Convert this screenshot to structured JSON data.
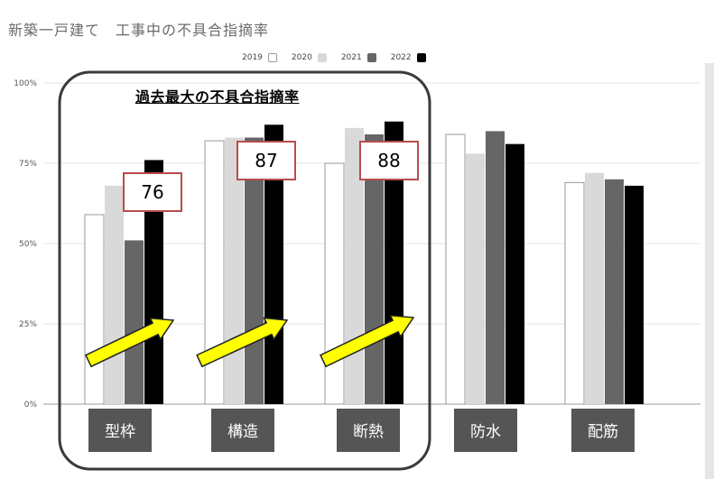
{
  "title": "新築一戸建て　工事中の不具合指摘率",
  "highlight_title": "過去最大の不具合指摘率",
  "callouts": [
    "76",
    "87",
    "88"
  ],
  "colors": {
    "2019": "#ffffff",
    "2020": "#d9d9d9",
    "2021": "#666666",
    "2022": "#000000",
    "callout_border": "#b94c4c",
    "arrow": "#ffff00",
    "category_box": "#555555"
  },
  "chart_data": {
    "type": "bar",
    "title": "新築一戸建て　工事中の不具合指摘率",
    "categories": [
      "型枠",
      "構造",
      "断熱",
      "防水",
      "配筋"
    ],
    "series": [
      {
        "name": "2019",
        "values": [
          59,
          82,
          75,
          84,
          69
        ]
      },
      {
        "name": "2020",
        "values": [
          68,
          83,
          86,
          78,
          72
        ]
      },
      {
        "name": "2021",
        "values": [
          51,
          83,
          84,
          85,
          70
        ]
      },
      {
        "name": "2022",
        "values": [
          76,
          87,
          88,
          81,
          68
        ]
      }
    ],
    "yticks": [
      "0%",
      "25%",
      "50%",
      "75%",
      "100%"
    ],
    "ylim": [
      0,
      100
    ],
    "legend": "top",
    "grid": true
  }
}
